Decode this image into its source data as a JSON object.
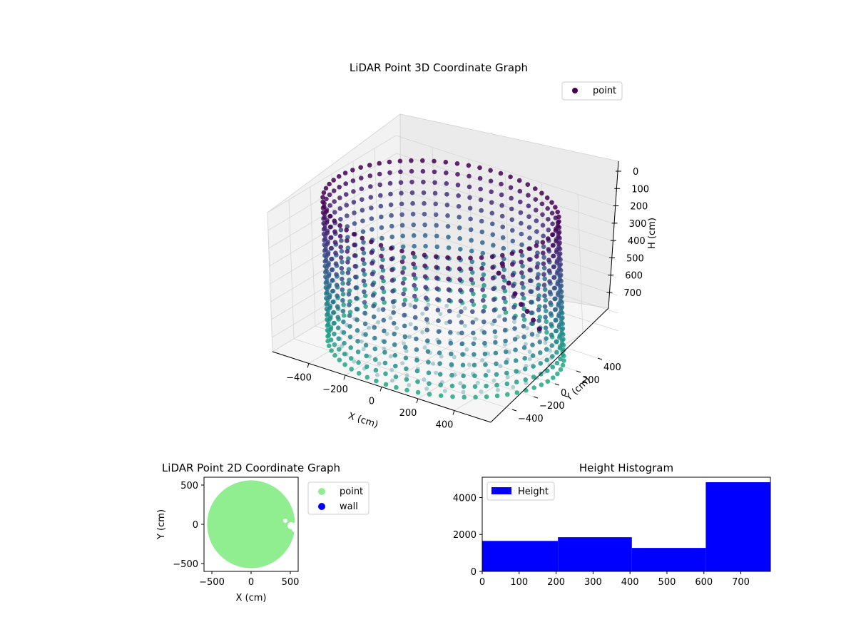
{
  "chart_data": [
    {
      "type": "scatter3d",
      "title": "LiDAR Point 3D Coordinate Graph",
      "xlabel": "X (cm)",
      "ylabel": "Y (cm)",
      "zlabel": "H (cm)",
      "xlim": [
        -600,
        600
      ],
      "ylim": [
        -600,
        600
      ],
      "zlim": [
        0,
        780
      ],
      "z_inverted": true,
      "xticks": [
        "−400",
        "−200",
        "0",
        "200",
        "400"
      ],
      "yticks": [
        "−400",
        "−200",
        "0",
        "200",
        "400"
      ],
      "zticks": [
        "0",
        "100",
        "200",
        "300",
        "400",
        "500",
        "600",
        "700"
      ],
      "grid": true,
      "legend": {
        "position": "upper right",
        "entries": [
          "point"
        ]
      },
      "colormap": "viridis",
      "series": [
        {
          "name": "point",
          "shape": "cylindrical wall with floor",
          "radius": 560,
          "height": 780,
          "columns": 64,
          "levels": [
            0,
            60,
            120,
            180,
            240,
            300,
            360,
            420,
            480,
            540,
            600,
            660,
            720,
            780
          ],
          "floor_rings": [
            100,
            200,
            300,
            400,
            500
          ],
          "extra_cluster": [
            {
              "x": 380,
              "y": -80,
              "h": 150
            },
            {
              "x": 370,
              "y": -100,
              "h": 200
            },
            {
              "x": 400,
              "y": -60,
              "h": 260
            },
            {
              "x": 420,
              "y": -40,
              "h": 320
            },
            {
              "x": 440,
              "y": -20,
              "h": 380
            },
            {
              "x": 460,
              "y": 0,
              "h": 420
            },
            {
              "x": 480,
              "y": 20,
              "h": 470
            },
            {
              "x": 500,
              "y": 40,
              "h": 520
            }
          ]
        }
      ]
    },
    {
      "type": "scatter",
      "title": "LiDAR Point 2D Coordinate Graph",
      "xlabel": "X (cm)",
      "ylabel": "Y (cm)",
      "xlim": [
        -600,
        600
      ],
      "ylim": [
        -600,
        600
      ],
      "xticks": [
        "−500",
        "0",
        "500"
      ],
      "yticks": [
        "500",
        "0",
        "−500"
      ],
      "legend": {
        "position": "outside right",
        "entries": [
          "point",
          "wall"
        ]
      },
      "colors": {
        "point": "#90ee90",
        "wall": "#0000ff"
      },
      "series": [
        {
          "name": "point",
          "shape": "filled disc",
          "center": [
            0,
            0
          ],
          "radius": 560
        },
        {
          "name": "wall",
          "points": []
        }
      ]
    },
    {
      "type": "histogram",
      "title": "Height Histogram",
      "xlim": [
        0,
        780
      ],
      "ylim": [
        0,
        5100
      ],
      "xticks": [
        "0",
        "100",
        "200",
        "300",
        "400",
        "500",
        "600",
        "700"
      ],
      "yticks": [
        "0",
        "2000",
        "4000"
      ],
      "legend": {
        "position": "upper left",
        "entries": [
          "Height"
        ]
      },
      "color": "#0000ff",
      "bins": [
        {
          "start": 0,
          "end": 205,
          "count": 1650
        },
        {
          "start": 205,
          "end": 405,
          "count": 1850
        },
        {
          "start": 405,
          "end": 605,
          "count": 1270
        },
        {
          "start": 605,
          "end": 780,
          "count": 4830
        }
      ]
    }
  ]
}
